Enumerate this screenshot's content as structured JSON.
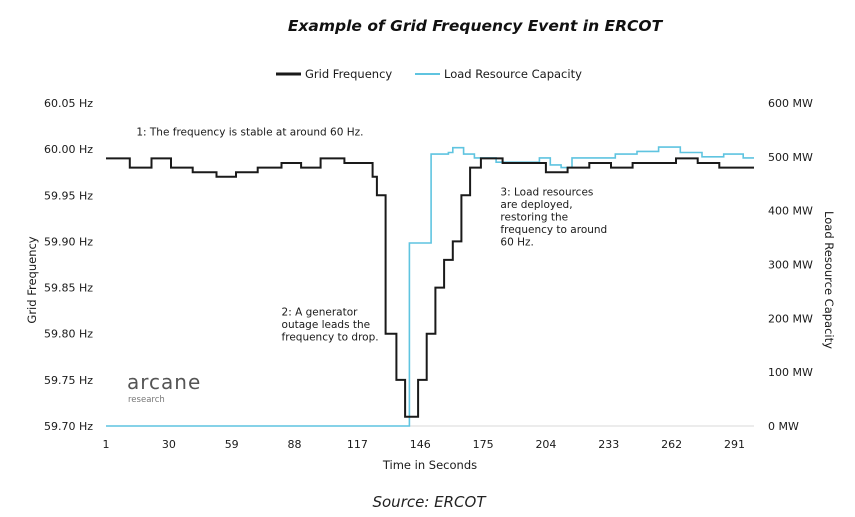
{
  "chart_data": {
    "type": "line",
    "title": "Example of Grid Frequency Event in ERCOT",
    "xlabel": "Time in Seconds",
    "ylabel": "Grid Frequency",
    "y2label": "Load Resource Capacity",
    "xlim": [
      1,
      300
    ],
    "ylim": [
      59.7,
      60.05
    ],
    "y2lim": [
      0,
      600
    ],
    "x_ticks": [
      1,
      30,
      59,
      88,
      117,
      146,
      175,
      204,
      233,
      262,
      291
    ],
    "y_ticks": [
      "60.05 Hz",
      "60.00 Hz",
      "59.95 Hz",
      "59.90 Hz",
      "59.85 Hz",
      "59.80 Hz",
      "59.75 Hz",
      "59.70 Hz"
    ],
    "y2_ticks": [
      "600 MW",
      "500 MW",
      "400 MW",
      "300 MW",
      "200 MW",
      "100 MW",
      "0 MW"
    ],
    "grid": false,
    "legend_position": "top-center",
    "series": [
      {
        "name": "Grid Frequency",
        "axis": "left",
        "color": "#1a1a1a",
        "step": true,
        "points": [
          [
            1,
            59.99
          ],
          [
            12,
            59.98
          ],
          [
            22,
            59.99
          ],
          [
            31,
            59.98
          ],
          [
            41,
            59.975
          ],
          [
            52,
            59.97
          ],
          [
            61,
            59.975
          ],
          [
            71,
            59.98
          ],
          [
            82,
            59.985
          ],
          [
            91,
            59.98
          ],
          [
            100,
            59.99
          ],
          [
            111,
            59.985
          ],
          [
            122,
            59.985
          ],
          [
            124,
            59.97
          ],
          [
            126,
            59.95
          ],
          [
            130,
            59.8
          ],
          [
            135,
            59.75
          ],
          [
            139,
            59.71
          ],
          [
            145,
            59.75
          ],
          [
            149,
            59.8
          ],
          [
            153,
            59.85
          ],
          [
            157,
            59.88
          ],
          [
            161,
            59.9
          ],
          [
            165,
            59.95
          ],
          [
            169,
            59.98
          ],
          [
            174,
            59.99
          ],
          [
            184,
            59.985
          ],
          [
            194,
            59.985
          ],
          [
            204,
            59.975
          ],
          [
            214,
            59.98
          ],
          [
            224,
            59.985
          ],
          [
            234,
            59.98
          ],
          [
            244,
            59.985
          ],
          [
            254,
            59.985
          ],
          [
            264,
            59.99
          ],
          [
            274,
            59.985
          ],
          [
            284,
            59.98
          ],
          [
            294,
            59.98
          ],
          [
            300,
            59.98
          ]
        ]
      },
      {
        "name": "Load Resource Capacity",
        "axis": "right",
        "color": "#5fc4e0",
        "step": true,
        "points": [
          [
            1,
            0
          ],
          [
            140,
            0
          ],
          [
            141,
            340
          ],
          [
            150,
            340
          ],
          [
            151,
            505
          ],
          [
            159,
            508
          ],
          [
            161,
            517
          ],
          [
            166,
            505
          ],
          [
            171,
            498
          ],
          [
            181,
            490
          ],
          [
            191,
            490
          ],
          [
            201,
            498
          ],
          [
            206,
            485
          ],
          [
            211,
            480
          ],
          [
            216,
            498
          ],
          [
            226,
            498
          ],
          [
            236,
            505
          ],
          [
            246,
            510
          ],
          [
            256,
            518
          ],
          [
            266,
            508
          ],
          [
            276,
            500
          ],
          [
            286,
            505
          ],
          [
            295,
            498
          ],
          [
            300,
            498
          ]
        ]
      }
    ],
    "annotations": [
      {
        "lines": [
          "1: The frequency is stable at around 60 Hz."
        ],
        "x": 15,
        "y": 60.015
      },
      {
        "lines": [
          "2: A generator",
          "outage leads the",
          "frequency to drop."
        ],
        "x": 82,
        "y": 59.82
      },
      {
        "lines": [
          "3: Load resources",
          "are deployed,",
          "restoring the",
          "frequency to around",
          "60 Hz."
        ],
        "x": 183,
        "y": 59.95
      }
    ]
  },
  "logo": {
    "name": "arcane",
    "sub": "research"
  },
  "source": "Source: ERCOT"
}
